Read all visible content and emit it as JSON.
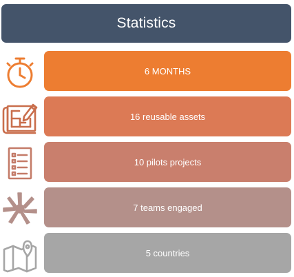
{
  "header": {
    "title": "Statistics",
    "color": "#44546a"
  },
  "stats": [
    {
      "label": "6 MONTHS",
      "icon": "stopwatch-icon",
      "color": "#ed7d31",
      "icon_color": "#ed7d31"
    },
    {
      "label": "16 reusable assets",
      "icon": "blueprint-icon",
      "color": "#dc7a55",
      "icon_color": "#c96e4c"
    },
    {
      "label": "10 pilots projects",
      "icon": "checklist-icon",
      "color": "#c97f6d",
      "icon_color": "#c47b68"
    },
    {
      "label": "7 teams engaged",
      "icon": "hands-together-icon",
      "color": "#b4908a",
      "icon_color": "#b4908a"
    },
    {
      "label": "5 countries",
      "icon": "map-pin-icon",
      "color": "#a6a6a6",
      "icon_color": "#a6a6a6"
    }
  ]
}
